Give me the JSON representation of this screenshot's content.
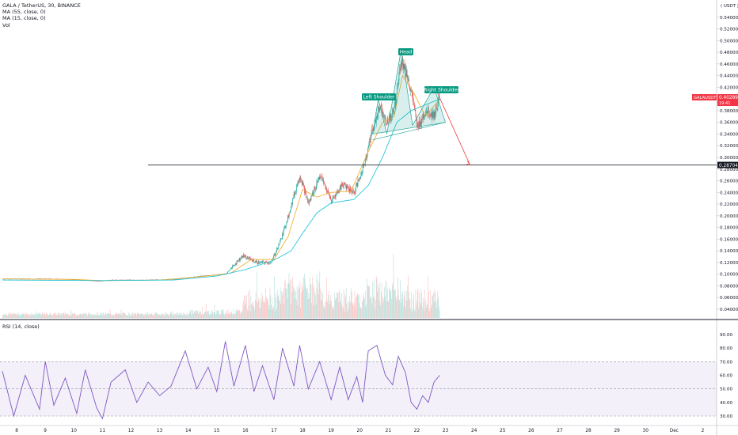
{
  "header": {
    "symbol_line": "GALA / TetherUS, 30, BINANCE",
    "indicator_ma55": "MA (55, close, 0)",
    "indicator_ma15": "MA (15, close, 0)",
    "indicator_vol": "Vol"
  },
  "rsi_pane": {
    "label": "RSI (14, close)",
    "levels": [
      {
        "label": "90.00",
        "value": 90
      },
      {
        "label": "80.00",
        "value": 80
      },
      {
        "label": "70.00",
        "value": 70
      },
      {
        "label": "60.00",
        "value": 60
      },
      {
        "label": "50.00",
        "value": 50
      },
      {
        "label": "40.00",
        "value": 40
      },
      {
        "label": "30.00",
        "value": 30
      }
    ],
    "upper_band": 70,
    "lower_band": 30,
    "mid_line": 50
  },
  "price_axis": {
    "currency": "USDT",
    "ticks": [
      "0.56000",
      "0.54000",
      "0.52000",
      "0.50000",
      "0.48000",
      "0.46000",
      "0.44000",
      "0.42000",
      "0.40000",
      "0.38000",
      "0.36000",
      "0.34000",
      "0.32000",
      "0.30000",
      "0.28000",
      "0.26000",
      "0.24000",
      "0.22000",
      "0.20000",
      "0.18000",
      "0.16000",
      "0.14000",
      "0.12000",
      "0.10000",
      "0.08000",
      "0.06000",
      "0.04000"
    ],
    "ticks_num": [
      0.56,
      0.54,
      0.52,
      0.5,
      0.48,
      0.46,
      0.44,
      0.42,
      0.4,
      0.38,
      0.36,
      0.34,
      0.32,
      0.3,
      0.28,
      0.26,
      0.24,
      0.22,
      0.2,
      0.18,
      0.16,
      0.14,
      0.12,
      0.1,
      0.08,
      0.06,
      0.04
    ],
    "current_price_badge": {
      "symbol": "GALAUSDT",
      "price": "0.40289",
      "countdown": "19:41",
      "value": 0.40289,
      "color": "#f23645"
    },
    "line_badge": {
      "price": "0.28704",
      "value": 0.28704
    }
  },
  "time_axis": {
    "labels": [
      "8",
      "9",
      "10",
      "11",
      "12",
      "13",
      "14",
      "15",
      "16",
      "17",
      "18",
      "19",
      "20",
      "21",
      "22",
      "23",
      "24",
      "25",
      "26",
      "27",
      "28",
      "29",
      "30",
      "Dec",
      "2"
    ]
  },
  "annotations": {
    "left_shoulder": "Left Shoulder",
    "head": "Head",
    "right_shoulder": "Right Shoulder",
    "label_color": "#089981"
  },
  "colors": {
    "up": "#26a69a",
    "down": "#ef5350",
    "ma15": "#f5a623",
    "ma55": "#26c6da",
    "rsi": "#7e57c2",
    "pattern_fill": "#26a69a",
    "projection": "#ef5350"
  },
  "chart_data": {
    "type": "candlestick",
    "x_unit": "day of November (Dec 1 = 31)",
    "y_unit": "USDT",
    "ylim": [
      0.02,
      0.58
    ],
    "xlim": [
      7.5,
      32.2
    ],
    "horizontal_line": 0.28704,
    "price_path": [
      [
        7.5,
        0.092
      ],
      [
        9,
        0.092
      ],
      [
        10,
        0.091
      ],
      [
        10.9,
        0.088
      ],
      [
        11.3,
        0.09
      ],
      [
        12.5,
        0.09
      ],
      [
        13.5,
        0.091
      ],
      [
        14.5,
        0.097
      ],
      [
        15.3,
        0.1
      ],
      [
        15.9,
        0.132
      ],
      [
        16.4,
        0.12
      ],
      [
        16.9,
        0.12
      ],
      [
        17.3,
        0.168
      ],
      [
        17.9,
        0.27
      ],
      [
        18.2,
        0.22
      ],
      [
        18.6,
        0.27
      ],
      [
        19.0,
        0.225
      ],
      [
        19.4,
        0.255
      ],
      [
        19.8,
        0.24
      ],
      [
        20.1,
        0.28
      ],
      [
        20.4,
        0.34
      ],
      [
        20.7,
        0.39
      ],
      [
        20.95,
        0.36
      ],
      [
        21.2,
        0.38
      ],
      [
        21.45,
        0.47
      ],
      [
        21.65,
        0.44
      ],
      [
        21.85,
        0.4
      ],
      [
        22.0,
        0.35
      ],
      [
        22.3,
        0.38
      ],
      [
        22.6,
        0.372
      ],
      [
        22.8,
        0.405
      ]
    ],
    "ma15_path": [
      [
        7.5,
        0.092
      ],
      [
        10,
        0.091
      ],
      [
        11,
        0.089
      ],
      [
        13,
        0.09
      ],
      [
        14.5,
        0.096
      ],
      [
        15.5,
        0.102
      ],
      [
        16.2,
        0.125
      ],
      [
        17,
        0.125
      ],
      [
        17.5,
        0.165
      ],
      [
        18,
        0.245
      ],
      [
        18.5,
        0.232
      ],
      [
        19,
        0.24
      ],
      [
        19.7,
        0.242
      ],
      [
        20.3,
        0.31
      ],
      [
        20.8,
        0.36
      ],
      [
        21.2,
        0.37
      ],
      [
        21.5,
        0.44
      ],
      [
        21.9,
        0.41
      ],
      [
        22.3,
        0.37
      ],
      [
        22.8,
        0.4
      ]
    ],
    "ma55_path": [
      [
        7.5,
        0.09
      ],
      [
        11,
        0.089
      ],
      [
        13.5,
        0.09
      ],
      [
        15,
        0.097
      ],
      [
        16,
        0.108
      ],
      [
        17,
        0.124
      ],
      [
        17.6,
        0.14
      ],
      [
        18,
        0.17
      ],
      [
        18.5,
        0.205
      ],
      [
        19,
        0.222
      ],
      [
        19.8,
        0.228
      ],
      [
        20.3,
        0.252
      ],
      [
        20.8,
        0.3
      ],
      [
        21.3,
        0.36
      ],
      [
        21.8,
        0.38
      ],
      [
        22.3,
        0.39
      ],
      [
        22.8,
        0.4
      ]
    ],
    "pattern": {
      "points": [
        [
          20.45,
          0.34
        ],
        [
          20.65,
          0.4
        ],
        [
          20.95,
          0.34
        ],
        [
          21.45,
          0.485
        ],
        [
          21.85,
          0.355
        ],
        [
          22.6,
          0.42
        ],
        [
          23.0,
          0.36
        ]
      ],
      "neckline": [
        [
          20.45,
          0.33
        ],
        [
          23.0,
          0.36
        ]
      ],
      "projection": [
        [
          22.65,
          0.418
        ],
        [
          23.85,
          0.288
        ]
      ]
    },
    "rsi_path": [
      [
        7.5,
        63
      ],
      [
        7.9,
        30
      ],
      [
        8.3,
        60
      ],
      [
        8.8,
        35
      ],
      [
        9.0,
        70
      ],
      [
        9.3,
        38
      ],
      [
        9.7,
        58
      ],
      [
        10.1,
        32
      ],
      [
        10.4,
        64
      ],
      [
        10.8,
        36
      ],
      [
        11.0,
        28
      ],
      [
        11.3,
        55
      ],
      [
        11.8,
        64
      ],
      [
        12.2,
        40
      ],
      [
        12.6,
        55
      ],
      [
        13.0,
        45
      ],
      [
        13.4,
        52
      ],
      [
        13.9,
        78
      ],
      [
        14.3,
        50
      ],
      [
        14.7,
        66
      ],
      [
        15.0,
        48
      ],
      [
        15.3,
        85
      ],
      [
        15.6,
        52
      ],
      [
        16.0,
        82
      ],
      [
        16.3,
        48
      ],
      [
        16.6,
        67
      ],
      [
        17.0,
        42
      ],
      [
        17.3,
        80
      ],
      [
        17.7,
        52
      ],
      [
        17.9,
        82
      ],
      [
        18.2,
        50
      ],
      [
        18.6,
        70
      ],
      [
        19.0,
        42
      ],
      [
        19.3,
        66
      ],
      [
        19.6,
        42
      ],
      [
        19.9,
        59
      ],
      [
        20.1,
        40
      ],
      [
        20.3,
        78
      ],
      [
        20.6,
        82
      ],
      [
        20.9,
        60
      ],
      [
        21.15,
        53
      ],
      [
        21.35,
        74
      ],
      [
        21.6,
        62
      ],
      [
        21.8,
        40
      ],
      [
        22.0,
        35
      ],
      [
        22.2,
        45
      ],
      [
        22.4,
        40
      ],
      [
        22.6,
        55
      ],
      [
        22.8,
        60
      ]
    ],
    "volume_note": "volume histogram shown at pane bottom"
  }
}
